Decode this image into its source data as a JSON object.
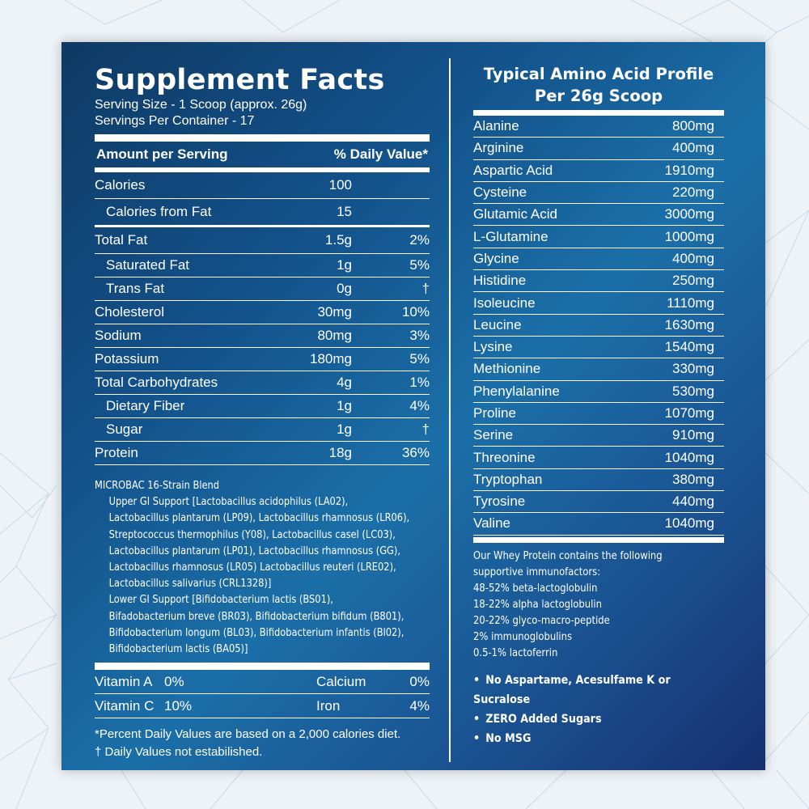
{
  "supplement": {
    "title": "Supplement Facts",
    "serving_size": "Serving  Size - 1 Scoop (approx. 26g)",
    "servings_per_container": "Servings Per Container - 17",
    "amount_header": "Amount per Serving",
    "dv_header": "% Daily Value*",
    "rows": [
      {
        "name": "Calories",
        "amount": "100",
        "dv": ""
      },
      {
        "name": "Calories from Fat",
        "amount": "15",
        "dv": ""
      },
      {
        "name": "Total Fat",
        "amount": "1.5g",
        "dv": "2%"
      },
      {
        "name": "Saturated Fat",
        "amount": "1g",
        "dv": "5%"
      },
      {
        "name": "Trans Fat",
        "amount": "0g",
        "dv": "†"
      },
      {
        "name": "Cholesterol",
        "amount": "30mg",
        "dv": "10%"
      },
      {
        "name": "Sodium",
        "amount": "80mg",
        "dv": "3%"
      },
      {
        "name": "Potassium",
        "amount": "180mg",
        "dv": "5%"
      },
      {
        "name": "Total Carbohydrates",
        "amount": "4g",
        "dv": "1%"
      },
      {
        "name": "Dietary Fiber",
        "amount": "1g",
        "dv": "4%"
      },
      {
        "name": "Sugar",
        "amount": "1g",
        "dv": "†"
      },
      {
        "name": "Protein",
        "amount": "18g",
        "dv": "36%"
      }
    ],
    "microbac_title": "MICROBAC 16-Strain Blend",
    "microbac_lines": [
      "Upper GI Support [Lactobacillus acidophilus (LA02),",
      "Lactobacillus plantarum (LP09), Lactobacillus rhamnosus (LR06),",
      "Streptococcus thermophilus (Y08), Lactobacillus casel (LC03),",
      "Lactobacillus plantarum (LP01),  Lactobacillus rhamnosus (GG),",
      "Lactobacillus rhamnosus (LR05) Lactobacillus reuteri (LRE02),",
      "Lactobacillus salivarius (CRL1328)]",
      "Lower GI Support [Bifidobacterium lactis (BS01),",
      "Bifadobacterium breve (BR03), Bifidobacterium bifidum (B801),",
      "Bifidobacterium longum (BL03), Bifidobacterium infantis (Bl02),",
      "Bifidobacterium lactis (BA05)]"
    ],
    "vitamins": [
      {
        "n1": "Vitamin A",
        "v1": "0%",
        "n2": "Calcium",
        "v2": "0%"
      },
      {
        "n1": "Vitamin C",
        "v1": "10%",
        "n2": "Iron",
        "v2": "4%"
      }
    ],
    "footnote1": "*Percent Daily Values are based on a 2,000 calories diet.",
    "footnote2": "† Daily Values not estabilished."
  },
  "amino": {
    "title_line1": "Typical Amino Acid Profile",
    "title_line2": "Per 26g Scoop",
    "rows": [
      {
        "name": "Alanine",
        "amount": "800mg"
      },
      {
        "name": "Arginine",
        "amount": "400mg"
      },
      {
        "name": "Aspartic Acid",
        "amount": "1910mg"
      },
      {
        "name": "Cysteine",
        "amount": "220mg"
      },
      {
        "name": "Glutamic Acid",
        "amount": "3000mg"
      },
      {
        "name": "L-Glutamine",
        "amount": "1000mg"
      },
      {
        "name": "Glycine",
        "amount": "400mg"
      },
      {
        "name": "Histidine",
        "amount": "250mg"
      },
      {
        "name": "Isoleucine",
        "amount": "1110mg"
      },
      {
        "name": "Leucine",
        "amount": "1630mg"
      },
      {
        "name": "Lysine",
        "amount": "1540mg"
      },
      {
        "name": "Methionine",
        "amount": "330mg"
      },
      {
        "name": "Phenylalanine",
        "amount": "530mg"
      },
      {
        "name": "Proline",
        "amount": "1070mg"
      },
      {
        "name": "Serine",
        "amount": "910mg"
      },
      {
        "name": "Threonine",
        "amount": "1040mg"
      },
      {
        "name": "Tryptophan",
        "amount": "380mg"
      },
      {
        "name": "Tyrosine",
        "amount": "440mg"
      },
      {
        "name": "Valine",
        "amount": "1040mg"
      }
    ],
    "immuno_lines": [
      "Our Whey Protein contains the following",
      "supportive immunofactors:",
      "48-52% beta-lactoglobulin",
      "18-22% alpha lactoglobulin",
      "20-22% glyco-macro-peptide",
      "2% immunoglobulins",
      "0.5-1% lactoferrin"
    ],
    "bullets": [
      "No Aspartame, Acesulfame K or Sucralose",
      "ZERO Added Sugars",
      "No MSG"
    ]
  },
  "colors": {
    "panel_dark": "#0e3a64",
    "panel_mid": "#1b6fa8",
    "panel_deep": "#16306f",
    "text": "#ffffff"
  }
}
